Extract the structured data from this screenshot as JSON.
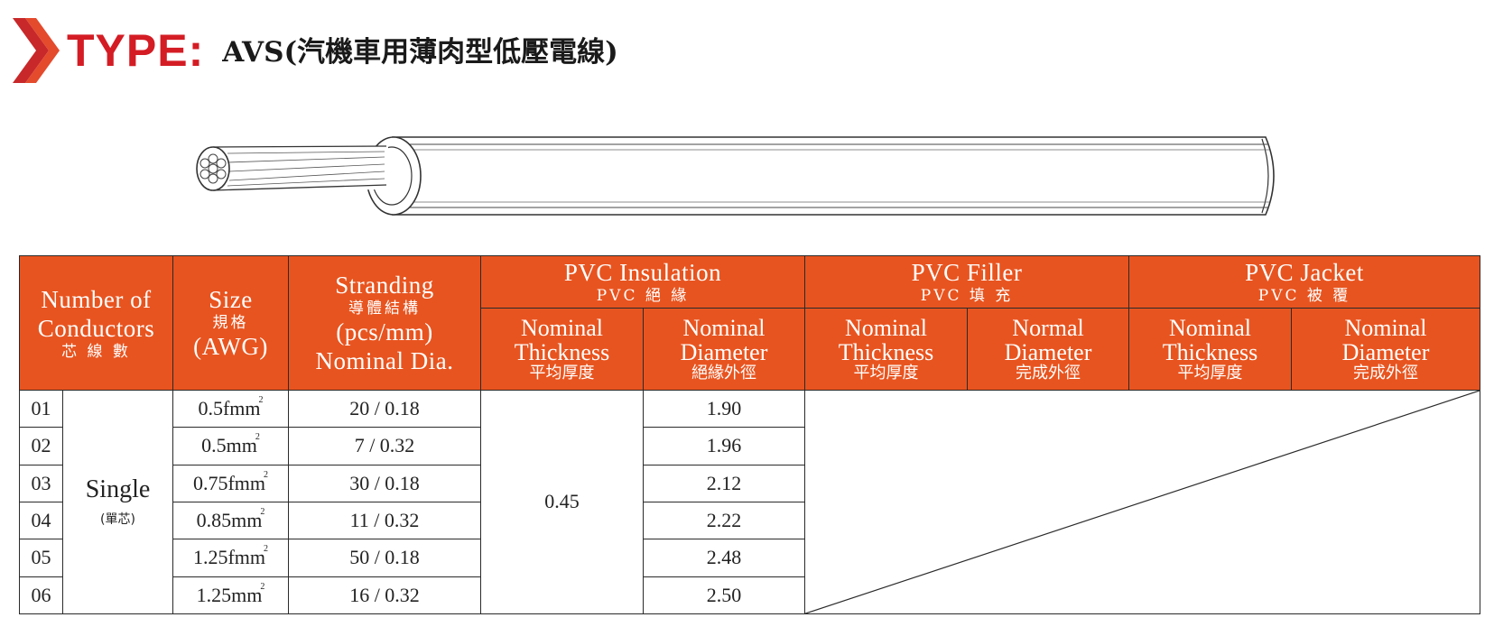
{
  "header": {
    "type_label": "TYPE:",
    "title": "AVS(汽機車用薄肉型低壓電線)",
    "accent_color": "#d41c24"
  },
  "table": {
    "header_color": "#e8541f",
    "columns": {
      "conductors": {
        "line1": "Number of",
        "line2": "Conductors",
        "cn": "芯 線 數"
      },
      "size": {
        "line1": "Size",
        "cn": "規格",
        "line2": "(AWG)"
      },
      "stranding": {
        "line1": "Stranding",
        "cn": "導體結構",
        "line2": "(pcs/mm)",
        "line3": "Nominal Dia."
      },
      "insulation": {
        "title": "PVC  Insulation",
        "cn": "PVC  絕  緣",
        "sub1": {
          "line1": "Nominal",
          "line2": "Thickness",
          "cn": "平均厚度"
        },
        "sub2": {
          "line1": "Nominal",
          "line2": "Diameter",
          "cn": "絕緣外徑"
        }
      },
      "filler": {
        "title": "PVC  Filler",
        "cn": "PVC  填  充",
        "sub1": {
          "line1": "Nominal",
          "line2": "Thickness",
          "cn": "平均厚度"
        },
        "sub2": {
          "line1": "Normal",
          "line2": "Diameter",
          "cn": "完成外徑"
        }
      },
      "jacket": {
        "title": "PVC  Jacket",
        "cn": "PVC  被  覆",
        "sub1": {
          "line1": "Nominal",
          "line2": "Thickness",
          "cn": "平均厚度"
        },
        "sub2": {
          "line1": "Nominal",
          "line2": "Diameter",
          "cn": "完成外徑"
        }
      }
    },
    "conductor_type": {
      "en": "Single",
      "cn": "(單芯)"
    },
    "insulation_thickness": "0.45",
    "unit_superscript": "2",
    "rows": [
      {
        "num": "01",
        "size": "0.5fmm",
        "stranding": "20 / 0.18",
        "diameter": "1.90"
      },
      {
        "num": "02",
        "size": "0.5mm",
        "stranding": "7 / 0.32",
        "diameter": "1.96"
      },
      {
        "num": "03",
        "size": "0.75fmm",
        "stranding": "30 / 0.18",
        "diameter": "2.12"
      },
      {
        "num": "04",
        "size": "0.85mm",
        "stranding": "11 / 0.32",
        "diameter": "2.22"
      },
      {
        "num": "05",
        "size": "1.25fmm",
        "stranding": "50 / 0.18",
        "diameter": "2.48"
      },
      {
        "num": "06",
        "size": "1.25mm",
        "stranding": "16 / 0.32",
        "diameter": "2.50"
      }
    ]
  }
}
